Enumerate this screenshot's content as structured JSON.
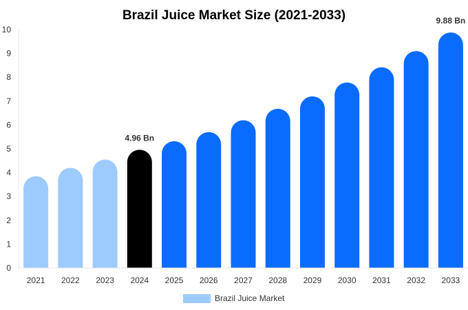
{
  "chart_data": {
    "type": "bar",
    "title": "Brazil Juice Market Size (2021-2033)",
    "categories": [
      "2021",
      "2022",
      "2023",
      "2024",
      "2025",
      "2026",
      "2027",
      "2028",
      "2029",
      "2030",
      "2031",
      "2032",
      "2033"
    ],
    "series": [
      {
        "name": "Brazil Juice Market",
        "values": [
          3.85,
          4.2,
          4.55,
          4.96,
          5.32,
          5.7,
          6.2,
          6.68,
          7.2,
          7.78,
          8.42,
          9.1,
          9.88
        ]
      }
    ],
    "data_labels": [
      {
        "category": "2024",
        "text": "4.96 Bn"
      },
      {
        "category": "2033",
        "text": "9.88 Bn"
      }
    ],
    "ylim": [
      0,
      10
    ],
    "yticks": [
      0,
      1,
      2,
      3,
      4,
      5,
      6,
      7,
      8,
      9,
      10
    ],
    "grid": false,
    "legend_position": "bottom-center",
    "colors": {
      "historical": "#9ecbff",
      "base_year": "#000000",
      "forecast": "#0a6cff",
      "legend": "#9ecbff"
    },
    "bar_color_groups": [
      "historical",
      "historical",
      "historical",
      "base_year",
      "forecast",
      "forecast",
      "forecast",
      "forecast",
      "forecast",
      "forecast",
      "forecast",
      "forecast",
      "forecast"
    ]
  }
}
